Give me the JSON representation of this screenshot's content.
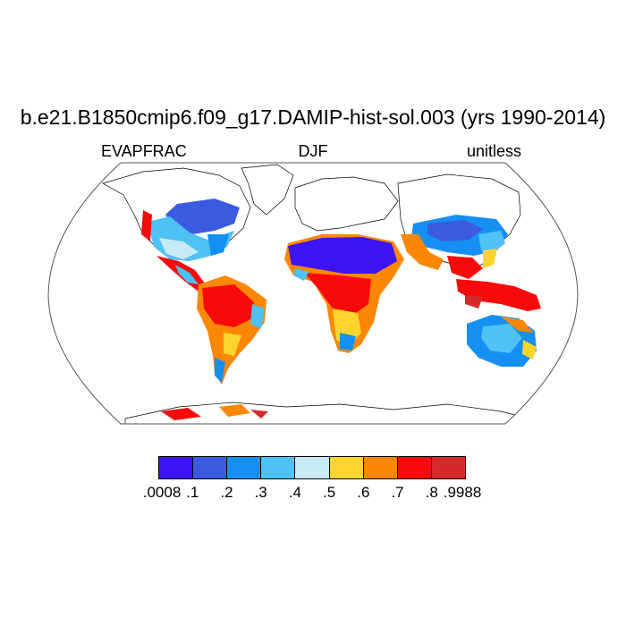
{
  "title": "b.e21.B1850cmip6.f09_g17.DAMIP-hist-sol.003 (yrs 1990-2014)",
  "subtitles": {
    "left": "EVAPFRAC",
    "center": "DJF",
    "right": "unitless"
  },
  "colorbar": {
    "colors": [
      "#3e14f5",
      "#3a5be0",
      "#1590f2",
      "#4fc1f5",
      "#c8e9f6",
      "#fed52c",
      "#fb8705",
      "#f90a0a",
      "#d42a2a"
    ],
    "labels": [
      ".0008",
      ".1",
      ".2",
      ".3",
      ".4",
      ".5",
      ".6",
      ".7",
      ".8",
      ".9988"
    ]
  }
}
